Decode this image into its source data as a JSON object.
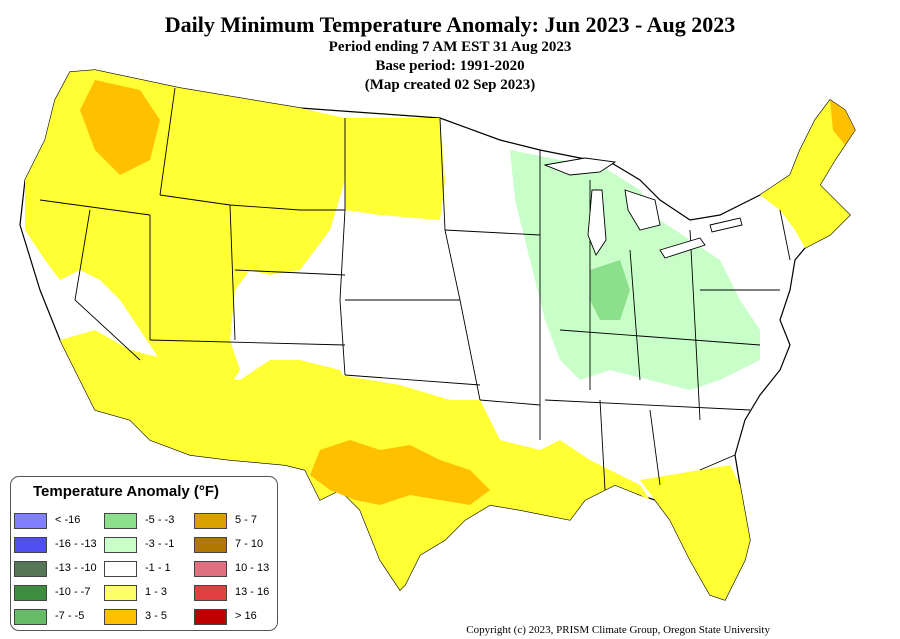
{
  "title": "Daily Minimum Temperature Anomaly: Jun 2023 - Aug 2023",
  "subtitle_lines": [
    "Period ending 7 AM EST 31 Aug 2023",
    "Base period: 1991-2020",
    "(Map created 02 Sep 2023)"
  ],
  "legend": {
    "title": "Temperature Anomaly (°F)",
    "items": [
      {
        "label": "< -16",
        "color": "#8080ff"
      },
      {
        "label": "-16 - -13",
        "color": "#5050f0"
      },
      {
        "label": "-13 - -10",
        "color": "#557755"
      },
      {
        "label": "-10 - -7",
        "color": "#3e8c3e"
      },
      {
        "label": "-7 - -5",
        "color": "#66bb66"
      },
      {
        "label": "-5 - -3",
        "color": "#8ce08c"
      },
      {
        "label": "-3 - -1",
        "color": "#c8ffc8"
      },
      {
        "label": "-1 - 1",
        "color": "#ffffff"
      },
      {
        "label": "1 - 3",
        "color": "#ffff66"
      },
      {
        "label": "3 - 5",
        "color": "#ffc000"
      },
      {
        "label": "5 - 7",
        "color": "#d9a000"
      },
      {
        "label": "7 - 10",
        "color": "#b07800"
      },
      {
        "label": "10 - 13",
        "color": "#e07080"
      },
      {
        "label": "13 - 16",
        "color": "#e04040"
      },
      {
        "label": "> 16",
        "color": "#c00000"
      }
    ]
  },
  "copyright": "Copyright (c) 2023, PRISM Climate Group, Oregon State University"
}
